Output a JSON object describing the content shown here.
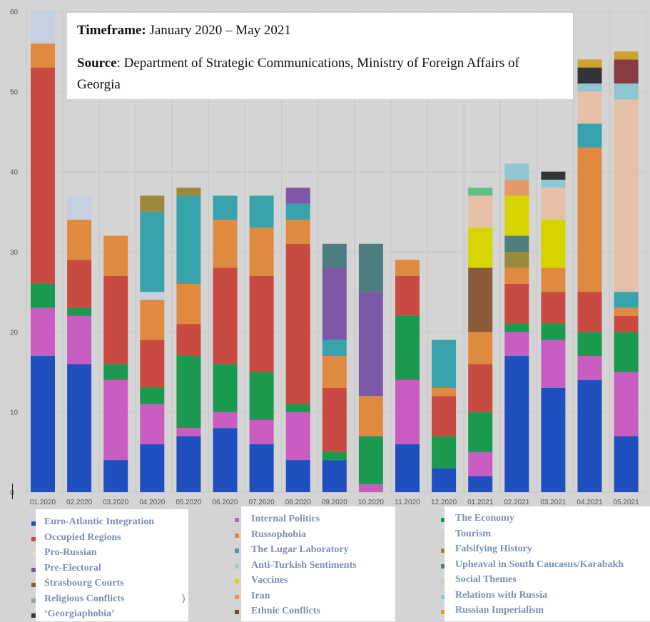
{
  "info": {
    "timeframe_label": "Timeframe:",
    "timeframe_value": " January 2020 – May 2021",
    "source_label": "Source",
    "source_value": ": Department of Strategic Communications, Ministry of Foreign Affairs of Georgia"
  },
  "chart_data": {
    "type": "bar",
    "stacked": true,
    "title": "",
    "xlabel": "",
    "ylabel": "",
    "ylim": [
      0,
      60
    ],
    "yticks": [
      0,
      10,
      20,
      30,
      40,
      50,
      60
    ],
    "grid": true,
    "legend_position": "bottom",
    "categories": [
      "01.2020",
      "02.2020",
      "03.2020",
      "04.2020",
      "05.2020",
      "06.2020",
      "07.2020",
      "08.2020",
      "09.2020",
      "10.2020",
      "11.2020",
      "12.2020",
      "01.2021",
      "02.2021",
      "03.2021",
      "04.2021",
      "05.2021"
    ],
    "series": [
      {
        "name": "Euro-Atlantic Integration",
        "color": "#1f4fbf",
        "values": [
          17,
          16,
          4,
          6,
          7,
          8,
          6,
          4,
          4,
          0,
          6,
          3,
          2,
          17,
          13,
          14,
          7
        ]
      },
      {
        "name": "Internal Politics",
        "color": "#c95cc0",
        "values": [
          6,
          6,
          10,
          5,
          1,
          2,
          3,
          6,
          0,
          1,
          8,
          0,
          3,
          3,
          6,
          3,
          8
        ]
      },
      {
        "name": "The Economy",
        "color": "#1a9a4e",
        "values": [
          3,
          1,
          2,
          2,
          9,
          6,
          6,
          1,
          1,
          6,
          8,
          4,
          5,
          1,
          2,
          3,
          5
        ]
      },
      {
        "name": "Occupied Regions",
        "color": "#c94a40",
        "values": [
          27,
          6,
          11,
          6,
          4,
          12,
          12,
          20,
          8,
          0,
          5,
          5,
          6,
          5,
          4,
          5,
          2
        ]
      },
      {
        "name": "Russophobia",
        "color": "#e08a40",
        "values": [
          3,
          5,
          5,
          5,
          5,
          6,
          6,
          3,
          4,
          5,
          2,
          1,
          4,
          2,
          3,
          18,
          1
        ]
      },
      {
        "name": "Tourism",
        "color": "#c5d0e0",
        "values": [
          4,
          3,
          0,
          1,
          0,
          0,
          0,
          0,
          0,
          0,
          0,
          0,
          0,
          0,
          0,
          0,
          0
        ]
      },
      {
        "name": "The Lugar Laboratory",
        "color": "#38a3ad",
        "values": [
          0,
          0,
          0,
          10,
          11,
          3,
          4,
          2,
          2,
          0,
          0,
          6,
          0,
          0,
          0,
          3,
          2
        ]
      },
      {
        "name": "Pro-Russian",
        "color": "#eecfd6",
        "values": [
          0,
          0,
          0,
          0,
          0,
          0,
          0,
          0,
          0,
          0,
          0,
          0,
          0,
          0,
          0,
          0,
          0
        ]
      },
      {
        "name": "Falsifying History",
        "color": "#9b8a3a",
        "values": [
          0,
          0,
          0,
          2,
          1,
          0,
          0,
          0,
          0,
          0,
          0,
          0,
          0,
          2,
          0,
          0,
          0
        ]
      },
      {
        "name": "Pre-Electoral",
        "color": "#7d58a6",
        "values": [
          0,
          0,
          0,
          0,
          0,
          0,
          0,
          2,
          9,
          13,
          0,
          0,
          0,
          0,
          0,
          0,
          0
        ]
      },
      {
        "name": "Anti-Turkish Sentiments",
        "color": "#9ccfc7",
        "values": [
          0,
          0,
          0,
          0,
          0,
          0,
          0,
          0,
          0,
          0,
          0,
          0,
          0,
          0,
          0,
          0,
          0
        ]
      },
      {
        "name": "Upheaval in South Caucasus/Karabakh",
        "color": "#4e7f7e",
        "values": [
          0,
          0,
          0,
          0,
          0,
          0,
          0,
          0,
          3,
          6,
          0,
          0,
          0,
          2,
          0,
          0,
          0
        ]
      },
      {
        "name": "Strasbourg Courts",
        "color": "#8a5a3a",
        "values": [
          0,
          0,
          0,
          0,
          0,
          0,
          0,
          0,
          0,
          0,
          0,
          0,
          8,
          0,
          0,
          0,
          0
        ]
      },
      {
        "name": "Vaccines",
        "color": "#d8d400",
        "values": [
          0,
          0,
          0,
          0,
          0,
          0,
          0,
          0,
          0,
          0,
          0,
          0,
          5,
          5,
          6,
          0,
          0
        ]
      },
      {
        "name": "Social Themes",
        "color": "#e6c1a8",
        "values": [
          0,
          0,
          0,
          0,
          0,
          0,
          0,
          0,
          0,
          0,
          0,
          0,
          4,
          0,
          4,
          4,
          24
        ]
      },
      {
        "name": "Religious Conflicts",
        "color": "#5fbf85",
        "values": [
          0,
          0,
          0,
          0,
          0,
          0,
          0,
          0,
          0,
          0,
          0,
          0,
          1,
          0,
          0,
          0,
          0
        ]
      },
      {
        "name": "Iran",
        "color": "#e39a6a",
        "values": [
          0,
          0,
          0,
          0,
          0,
          0,
          0,
          0,
          0,
          0,
          0,
          0,
          0,
          2,
          0,
          0,
          0
        ]
      },
      {
        "name": "Relations with Russia",
        "color": "#8fc6d2",
        "values": [
          0,
          0,
          0,
          0,
          0,
          0,
          0,
          0,
          0,
          0,
          0,
          0,
          0,
          2,
          1,
          1,
          2
        ]
      },
      {
        "name": "‘Georgiaphobia’",
        "color": "#333338",
        "values": [
          0,
          0,
          0,
          0,
          0,
          0,
          0,
          0,
          0,
          0,
          0,
          0,
          0,
          0,
          1,
          2,
          0
        ]
      },
      {
        "name": "Ethnic Conflicts",
        "color": "#8a3c44",
        "values": [
          0,
          0,
          0,
          0,
          0,
          0,
          0,
          0,
          0,
          0,
          0,
          0,
          0,
          0,
          0,
          0,
          3
        ]
      },
      {
        "name": "Russian Imperialism",
        "color": "#c9a430",
        "values": [
          0,
          0,
          0,
          0,
          0,
          0,
          0,
          0,
          0,
          0,
          0,
          0,
          0,
          0,
          0,
          1,
          1
        ]
      }
    ]
  },
  "legend": {
    "columns": [
      {
        "items": [
          {
            "label": "Euro-Atlantic Integration",
            "color": "#1f4fbf"
          },
          {
            "label": "Occupied Regions",
            "color": "#c94a40"
          },
          {
            "label": "Pro-Russian",
            "color": "#eecfd6"
          },
          {
            "label": "Pre-Electoral",
            "color": "#7d58a6"
          },
          {
            "label": "Strasbourg Courts",
            "color": "#8a5a3a"
          },
          {
            "label": "Religious Conflicts",
            "color": "#8fa69a"
          },
          {
            "label": "‘Georgiaphobia’",
            "color": "#333338"
          }
        ]
      },
      {
        "items": [
          {
            "label": "Internal Politics",
            "color": "#c95cc0"
          },
          {
            "label": "Russophobia",
            "color": "#e08a40"
          },
          {
            "label": "The Lugar Laboratory",
            "color": "#38a3ad"
          },
          {
            "label": "Anti-Turkish Sentiments",
            "color": "#9ccfc7"
          },
          {
            "label": "Vaccines",
            "color": "#d8d400"
          },
          {
            "label": "Iran",
            "color": "#e39a6a"
          },
          {
            "label": "Ethnic Conflicts",
            "color": "#8a3c44"
          }
        ]
      },
      {
        "items": [
          {
            "label": "The Economy",
            "color": "#1a9a4e"
          },
          {
            "label": "Tourism",
            "color": "#c5d0e0"
          },
          {
            "label": "Falsifying History",
            "color": "#9b8a3a"
          },
          {
            "label": "Upheaval in South Caucasus/Karabakh",
            "color": "#4e7f7e"
          },
          {
            "label": "Social Themes",
            "color": "#e6c1a8"
          },
          {
            "label": "Relations with Russia",
            "color": "#8fc6d2"
          },
          {
            "label": "Russian Imperialism",
            "color": "#c9a430"
          }
        ]
      }
    ],
    "stray_mark": ")"
  }
}
